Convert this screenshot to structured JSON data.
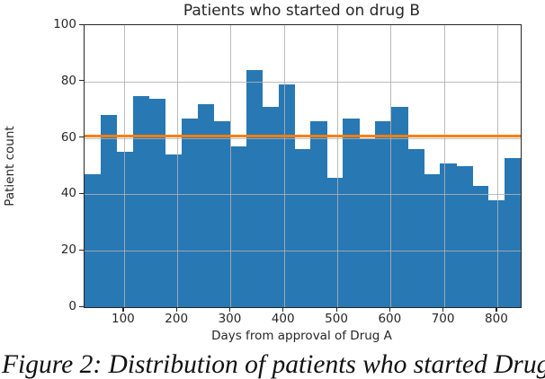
{
  "figure": {
    "title": "Patients who started on drug B",
    "xlabel": "Days from approval of Drug A",
    "ylabel": "Patient count",
    "caption": "Figure 2: Distribution of patients who started Drug B",
    "colors": {
      "bar": "#2878b4",
      "reference_line": "#ff7f0e",
      "grid": "#b0b0b0",
      "axis": "#262626",
      "text": "#262626"
    }
  },
  "chart_data": {
    "type": "bar",
    "subtype": "histogram",
    "title": "Patients who started on drug B",
    "xlabel": "Days from approval of Drug A",
    "ylabel": "Patient count",
    "bin_start": 26,
    "bin_width": 30.3,
    "n_bins": 27,
    "values": [
      47,
      68,
      55,
      75,
      74,
      54,
      67,
      72,
      66,
      57,
      84,
      71,
      79,
      56,
      66,
      46,
      67,
      60,
      66,
      71,
      56,
      47,
      51,
      50,
      43,
      38,
      53
    ],
    "xlim": [
      26,
      844
    ],
    "ylim": [
      0,
      100
    ],
    "x_ticks": [
      100,
      200,
      300,
      400,
      500,
      600,
      700,
      800
    ],
    "y_ticks": [
      0,
      20,
      40,
      60,
      80,
      100
    ],
    "grid": true,
    "grid_above_bars": true,
    "legend": null,
    "reference_line": {
      "y": 60.6,
      "color": "#ff7f0e",
      "orientation": "horizontal",
      "meaning": "approximate mean patient count"
    }
  }
}
